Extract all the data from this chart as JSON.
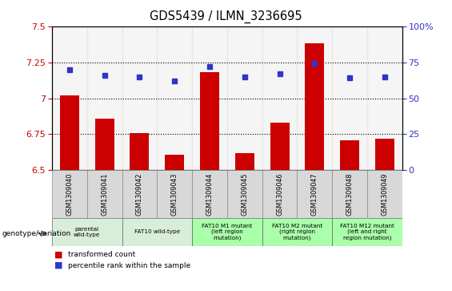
{
  "title": "GDS5439 / ILMN_3236695",
  "samples": [
    "GSM1309040",
    "GSM1309041",
    "GSM1309042",
    "GSM1309043",
    "GSM1309044",
    "GSM1309045",
    "GSM1309046",
    "GSM1309047",
    "GSM1309048",
    "GSM1309049"
  ],
  "transformed_counts": [
    7.02,
    6.86,
    6.76,
    6.61,
    7.18,
    6.62,
    6.83,
    7.38,
    6.71,
    6.72
  ],
  "percentile_ranks": [
    70,
    66,
    65,
    62,
    72,
    65,
    67,
    74,
    64,
    65
  ],
  "ylim_left": [
    6.5,
    7.5
  ],
  "ylim_right": [
    0,
    100
  ],
  "yticks_left": [
    6.5,
    6.75,
    7.0,
    7.25,
    7.5
  ],
  "yticks_right": [
    0,
    25,
    50,
    75,
    100
  ],
  "hlines": [
    6.75,
    7.0,
    7.25
  ],
  "bar_color": "#cc0000",
  "dot_color": "#3333cc",
  "bar_baseline": 6.5,
  "sample_bg_colors": [
    "#d8d8d8",
    "#d8d8d8",
    "#d8d8d8",
    "#d8d8d8",
    "#d8d8d8",
    "#d8d8d8",
    "#d8d8d8",
    "#d8d8d8",
    "#d8d8d8",
    "#d8d8d8"
  ],
  "genotype_groups": [
    {
      "label": "parental\nwild-type",
      "start": 0,
      "end": 2,
      "color": "#d8eed8"
    },
    {
      "label": "FAT10 wild-type",
      "start": 2,
      "end": 4,
      "color": "#d8eed8"
    },
    {
      "label": "FAT10 M1 mutant\n(left region\nmutation)",
      "start": 4,
      "end": 6,
      "color": "#aaffaa"
    },
    {
      "label": "FAT10 M2 mutant\n(right region\nmutation)",
      "start": 6,
      "end": 8,
      "color": "#aaffaa"
    },
    {
      "label": "FAT10 M12 mutant\n(left and right\nregion mutation)",
      "start": 8,
      "end": 10,
      "color": "#aaffaa"
    }
  ]
}
